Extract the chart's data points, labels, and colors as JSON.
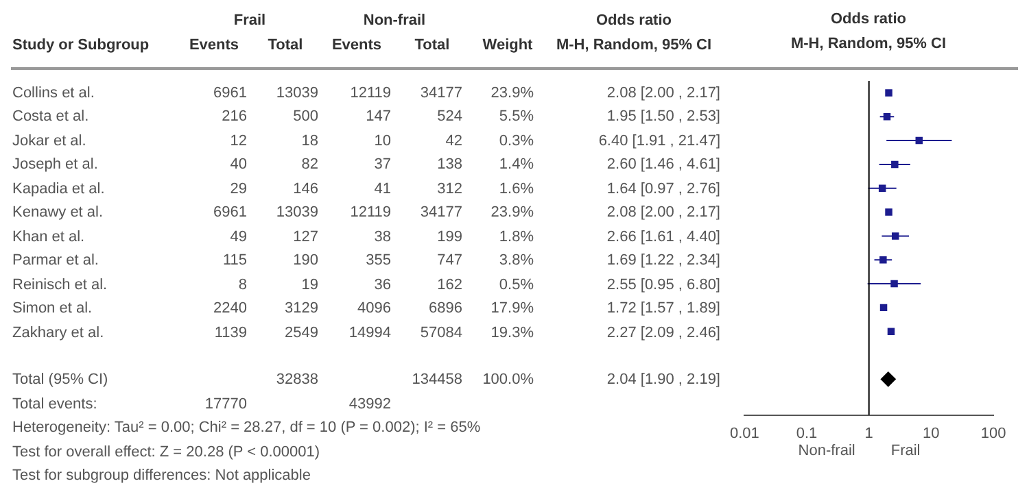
{
  "chart_data": [
    {
      "type": "other",
      "ylabel": "Study or Subgroup",
      "categories": [
        "Events",
        "Total",
        "Events",
        "Total",
        "Weight",
        "M-H, Random, 95% CI"
      ],
      "y_categories": [
        "Collins et al.",
        "Costa et al.",
        "Jokar et al.",
        "Joseph et al.",
        "Kapadia et al.",
        "Kenawy et al.",
        "Khan et al.",
        "Parmar et al.",
        "Reinisch et al.",
        "Simon et al.",
        "Zakhary et al.",
        null,
        "Total (95% CI)",
        "Total events:"
      ],
      "cell_labels": [
        [
          "6961",
          "13039",
          "12119",
          "34177",
          "23.9%",
          "2.08 [2.00 , 2.17]"
        ],
        [
          "216",
          "500",
          "147",
          "524",
          "5.5%",
          "1.95 [1.50 , 2.53]"
        ],
        [
          "12",
          "18",
          "10",
          "42",
          "0.3%",
          "6.40 [1.91 , 21.47]"
        ],
        [
          "40",
          "82",
          "37",
          "138",
          "1.4%",
          "2.60 [1.46 , 4.61]"
        ],
        [
          "29",
          "146",
          "41",
          "312",
          "1.6%",
          "1.64 [0.97 , 2.76]"
        ],
        [
          "6961",
          "13039",
          "12119",
          "34177",
          "23.9%",
          "2.08 [2.00 , 2.17]"
        ],
        [
          "49",
          "127",
          "38",
          "199",
          "1.8%",
          "2.66 [1.61 , 4.40]"
        ],
        [
          "115",
          "190",
          "355",
          "747",
          "3.8%",
          "1.69 [1.22 , 2.34]"
        ],
        [
          "8",
          "19",
          "36",
          "162",
          "0.5%",
          "2.55 [0.95 , 6.80]"
        ],
        [
          "2240",
          "3129",
          "4096",
          "6896",
          "17.9%",
          "1.72 [1.57 , 1.89]"
        ],
        [
          "1139",
          "2549",
          "14994",
          "57084",
          "19.3%",
          "2.27 [2.09 , 2.46]"
        ],
        [
          null,
          null,
          null,
          null,
          null,
          null
        ],
        [
          null,
          "32838",
          null,
          "134458",
          "100.0%",
          "2.04 [1.90 , 2.19]"
        ],
        [
          "17770",
          null,
          "43992",
          null,
          null,
          null
        ]
      ],
      "annotations": [
        "Frail",
        "Non-frail",
        "Odds ratio",
        "Heterogeneity: Tau² = 0.00; Chi² = 28.27, df = 10 (P = 0.002); I² = 65%",
        "Test for overall effect: Z = 20.28 (P < 0.00001)",
        "Test for subgroup differences: Not applicable"
      ]
    },
    {
      "type": "scatter",
      "title": "Odds ratio",
      "subtitle": "M-H, Random, 95% CI",
      "orientation": "horizontal",
      "categories": [
        null,
        null,
        null,
        null,
        null,
        null,
        null,
        null,
        null,
        null,
        null,
        null,
        null,
        null
      ],
      "series": [
        {
          "color": "#1c1c8f",
          "marker": "square",
          "values": [
            2.08,
            1.95,
            6.4,
            2.6,
            1.64,
            2.08,
            2.66,
            1.69,
            2.55,
            1.72,
            2.27,
            null,
            null,
            null
          ],
          "errors": [
            [
              2.0,
              2.17
            ],
            [
              1.5,
              2.53
            ],
            [
              1.91,
              21.47
            ],
            [
              1.46,
              4.61
            ],
            [
              0.97,
              2.76
            ],
            [
              2.0,
              2.17
            ],
            [
              1.61,
              4.4
            ],
            [
              1.22,
              2.34
            ],
            [
              0.95,
              6.8
            ],
            [
              1.57,
              1.89
            ],
            [
              2.09,
              2.46
            ],
            null,
            null,
            null
          ]
        },
        {
          "color": "#000000",
          "marker": "diamond",
          "values": [
            null,
            null,
            null,
            null,
            null,
            null,
            null,
            null,
            null,
            null,
            null,
            null,
            2.04,
            null
          ],
          "errors": [
            null,
            null,
            null,
            null,
            null,
            null,
            null,
            null,
            null,
            null,
            null,
            null,
            [
              1.9,
              2.19
            ],
            null
          ]
        }
      ],
      "log": "x",
      "xlim": [
        0.01,
        100
      ],
      "xticks": [
        0.01,
        0.1,
        1,
        10,
        100
      ],
      "ref_lines": [
        {
          "axis": "x",
          "value": 1,
          "color": "#000000"
        }
      ],
      "grid": false,
      "legend": false,
      "annotations": [
        "Non-frail",
        "Frail"
      ]
    }
  ]
}
